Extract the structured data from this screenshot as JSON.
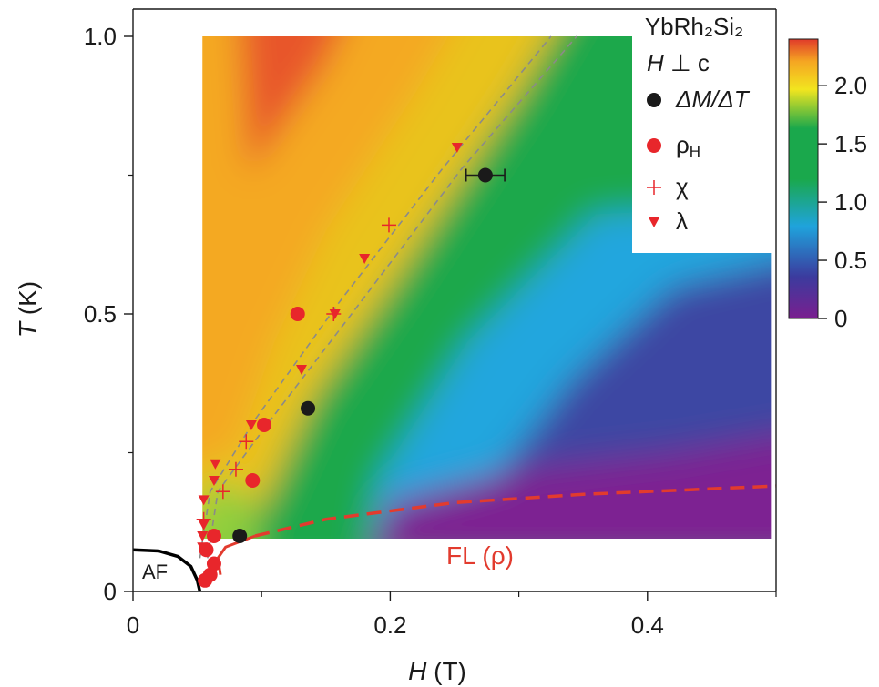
{
  "chart_data": {
    "type": "heatmap",
    "title_lines": [
      "YbRh₂Si₂",
      "H ⊥ c"
    ],
    "title_compound": "YbRh₂Si₂",
    "title_field_var": "H",
    "title_field_rest": " ⊥ c",
    "xlabel_var": "H",
    "xlabel_unit": " (T)",
    "ylabel_var": "T",
    "ylabel_unit": " (K)",
    "xlim": [
      0,
      0.5
    ],
    "ylim": [
      0,
      1.0
    ],
    "x_major_ticks": [
      0,
      0.2,
      0.4
    ],
    "x_major_tick_labels": [
      "0",
      "0.2",
      "0.4"
    ],
    "x_minor_ticks": [
      0.1,
      0.3,
      0.5
    ],
    "y_major_ticks": [
      0,
      0.5,
      1.0
    ],
    "y_major_tick_labels": [
      "0",
      "0.5",
      "1.0"
    ],
    "y_minor_ticks": [
      0.25,
      0.75
    ],
    "heatmap_region": {
      "x": [
        0.054,
        0.496
      ],
      "y": [
        0.095,
        1.0
      ]
    },
    "colorbar": {
      "ticks": [
        0,
        0.5,
        1.0,
        1.5,
        2.0
      ],
      "tick_labels": [
        "0",
        "0.5",
        "1.0",
        "1.5",
        "2.0"
      ],
      "range": [
        0,
        2.4
      ],
      "colors": [
        "#7a1f8f",
        "#3b3b9e",
        "#1fa3dc",
        "#1aa84c",
        "#f2e51f",
        "#f5a622",
        "#e03a2a"
      ]
    },
    "legend": [
      {
        "label": "ΔM/ΔT",
        "marker": "circle",
        "color": "#1a1a1a"
      },
      {
        "label": "ρH",
        "label_base": "ρ",
        "label_sub": "H",
        "marker": "circle",
        "color": "#e8262b"
      },
      {
        "label": "χ",
        "marker": "plus",
        "color": "#e8262b"
      },
      {
        "label": "λ",
        "marker": "triangle-down",
        "color": "#e8262b"
      }
    ],
    "series": [
      {
        "name": "ΔM/ΔT",
        "marker": "circle",
        "color": "#1a1a1a",
        "points": [
          {
            "x": 0.083,
            "y": 0.1
          },
          {
            "x": 0.136,
            "y": 0.33
          },
          {
            "x": 0.274,
            "y": 0.75,
            "xerr": 0.015
          }
        ]
      },
      {
        "name": "ρH",
        "marker": "circle",
        "color": "#e8262b",
        "points": [
          {
            "x": 0.056,
            "y": 0.02
          },
          {
            "x": 0.06,
            "y": 0.03
          },
          {
            "x": 0.063,
            "y": 0.05
          },
          {
            "x": 0.057,
            "y": 0.075
          },
          {
            "x": 0.063,
            "y": 0.1
          },
          {
            "x": 0.093,
            "y": 0.2
          },
          {
            "x": 0.102,
            "y": 0.3
          },
          {
            "x": 0.128,
            "y": 0.5
          }
        ]
      },
      {
        "name": "χ",
        "marker": "plus",
        "color": "#e8262b",
        "points": [
          {
            "x": 0.055,
            "y": 0.13
          },
          {
            "x": 0.07,
            "y": 0.18
          },
          {
            "x": 0.08,
            "y": 0.22
          },
          {
            "x": 0.088,
            "y": 0.27
          },
          {
            "x": 0.156,
            "y": 0.5
          },
          {
            "x": 0.199,
            "y": 0.66
          }
        ]
      },
      {
        "name": "λ",
        "marker": "triangle-down",
        "color": "#e8262b",
        "points": [
          {
            "x": 0.054,
            "y": 0.08
          },
          {
            "x": 0.054,
            "y": 0.1
          },
          {
            "x": 0.055,
            "y": 0.12
          },
          {
            "x": 0.055,
            "y": 0.165
          },
          {
            "x": 0.063,
            "y": 0.2
          },
          {
            "x": 0.064,
            "y": 0.23
          },
          {
            "x": 0.092,
            "y": 0.3
          },
          {
            "x": 0.131,
            "y": 0.4
          },
          {
            "x": 0.157,
            "y": 0.5
          },
          {
            "x": 0.18,
            "y": 0.6
          },
          {
            "x": 0.252,
            "y": 0.8
          }
        ]
      }
    ],
    "guide_lines": [
      {
        "style": "gray-dashed",
        "points": [
          [
            0.052,
            0.06
          ],
          [
            0.06,
            0.18
          ],
          [
            0.095,
            0.31
          ],
          [
            0.16,
            0.52
          ],
          [
            0.24,
            0.76
          ],
          [
            0.325,
            1.0
          ]
        ]
      },
      {
        "style": "gray-dashed",
        "points": [
          [
            0.058,
            0.06
          ],
          [
            0.066,
            0.18
          ],
          [
            0.104,
            0.3
          ],
          [
            0.17,
            0.5
          ],
          [
            0.255,
            0.76
          ],
          [
            0.345,
            1.0
          ]
        ]
      }
    ],
    "fl_boundary": {
      "label": "FL (ρ)",
      "color": "#e23b2e",
      "solid_points": [
        [
          0.068,
          0.03
        ],
        [
          0.066,
          0.06
        ],
        [
          0.072,
          0.08
        ],
        [
          0.095,
          0.1
        ]
      ],
      "dashed_points": [
        [
          0.095,
          0.1
        ],
        [
          0.15,
          0.13
        ],
        [
          0.25,
          0.16
        ],
        [
          0.35,
          0.175
        ],
        [
          0.5,
          0.19
        ]
      ]
    },
    "af_boundary": {
      "label": "AF",
      "color": "#000000",
      "points": [
        [
          0.0,
          0.075
        ],
        [
          0.02,
          0.073
        ],
        [
          0.035,
          0.063
        ],
        [
          0.045,
          0.045
        ],
        [
          0.05,
          0.02
        ],
        [
          0.052,
          0.0
        ]
      ]
    }
  }
}
